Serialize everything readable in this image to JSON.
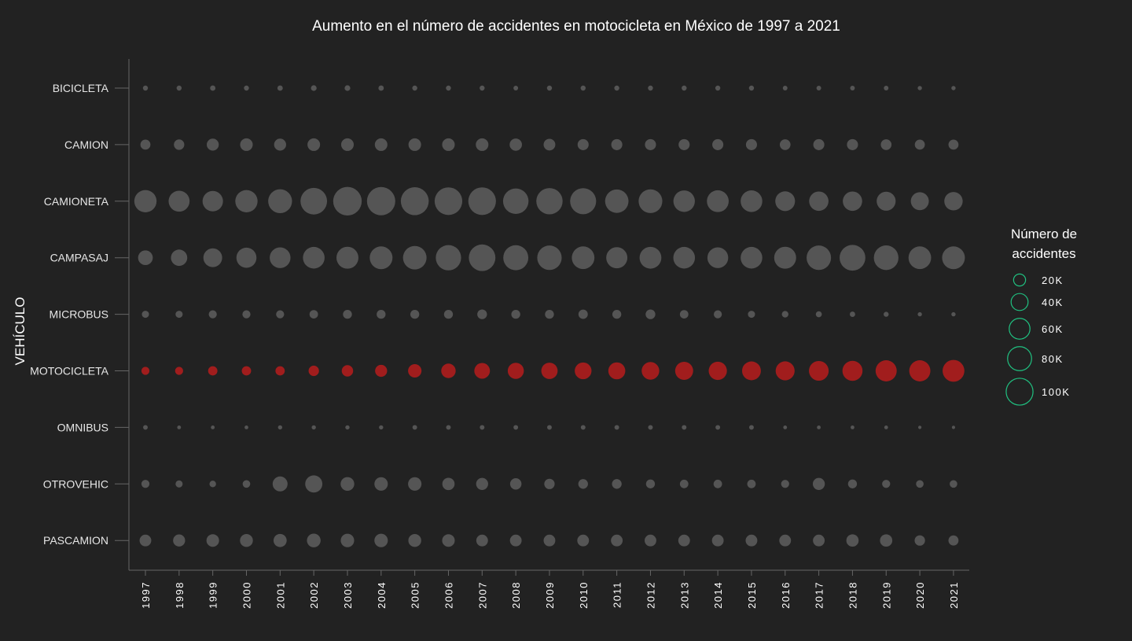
{
  "chart_data": {
    "type": "scatter",
    "title": "Aumento en el número de accidentes en motocicleta en México de 1997 a 2021",
    "xlabel": "",
    "ylabel": "VEHÍCULO",
    "x": [
      "1997",
      "1998",
      "1999",
      "2000",
      "2001",
      "2002",
      "2003",
      "2004",
      "2005",
      "2006",
      "2007",
      "2008",
      "2009",
      "2010",
      "2011",
      "2012",
      "2013",
      "2014",
      "2015",
      "2016",
      "2017",
      "2018",
      "2019",
      "2020",
      "2021"
    ],
    "categories": [
      "BICICLETA",
      "CAMION",
      "CAMIONETA",
      "CAMPASAJ",
      "MICROBUS",
      "MOTOCICLETA",
      "OMNIBUS",
      "OTROVEHIC",
      "PASCAMION"
    ],
    "highlight": "MOTOCICLETA",
    "series": [
      {
        "name": "BICICLETA",
        "values": [
          3500,
          3500,
          4000,
          3500,
          4000,
          4500,
          4500,
          4000,
          3500,
          3500,
          3500,
          3000,
          3500,
          3500,
          3500,
          3500,
          3500,
          3500,
          3500,
          3000,
          3000,
          3000,
          3000,
          2500,
          2500
        ]
      },
      {
        "name": "CAMION",
        "values": [
          14000,
          15000,
          20000,
          22000,
          20000,
          22000,
          22000,
          22000,
          22000,
          22000,
          22000,
          21000,
          19000,
          17000,
          17000,
          17000,
          17000,
          17000,
          17000,
          16000,
          17000,
          17000,
          16000,
          14000,
          14000
        ]
      },
      {
        "name": "CAMIONETA",
        "values": [
          69000,
          61000,
          58000,
          69000,
          79000,
          98000,
          113000,
          111000,
          108000,
          106000,
          106000,
          90000,
          96000,
          94000,
          76000,
          78000,
          64000,
          66000,
          65000,
          54000,
          52000,
          52000,
          50000,
          45000,
          47000
        ]
      },
      {
        "name": "CAMPASAJ",
        "values": [
          30000,
          37000,
          49000,
          56000,
          60000,
          65000,
          67000,
          72000,
          77000,
          89000,
          98000,
          87000,
          83000,
          71000,
          62000,
          66000,
          65000,
          60000,
          65000,
          67000,
          83000,
          92000,
          84000,
          71000,
          72000
        ]
      },
      {
        "name": "MICROBUS",
        "values": [
          7000,
          7000,
          9000,
          9000,
          9000,
          10000,
          11000,
          11000,
          11000,
          11000,
          13000,
          11000,
          11000,
          12000,
          11000,
          13000,
          10000,
          9000,
          7000,
          6000,
          5000,
          4000,
          3500,
          2500,
          2500
        ]
      },
      {
        "name": "MOTOCICLETA",
        "values": [
          9000,
          9000,
          12000,
          12000,
          12000,
          15000,
          18000,
          20000,
          25000,
          29000,
          34000,
          36000,
          37000,
          39000,
          40000,
          43000,
          45000,
          46000,
          49000,
          50000,
          54000,
          56000,
          62000,
          62000,
          66000
        ]
      },
      {
        "name": "OMNIBUS",
        "values": [
          3000,
          2000,
          2000,
          2000,
          2500,
          2500,
          2500,
          2500,
          3000,
          3000,
          3000,
          3000,
          3000,
          3000,
          3000,
          3000,
          3000,
          3000,
          3000,
          2000,
          2000,
          2000,
          2000,
          1500,
          1500
        ]
      },
      {
        "name": "OTROVEHIC",
        "values": [
          9000,
          7000,
          6000,
          8000,
          31000,
          41000,
          26000,
          25000,
          25000,
          21000,
          20000,
          18000,
          15000,
          13000,
          13000,
          11000,
          10000,
          10000,
          10000,
          9000,
          20000,
          11000,
          9000,
          8000,
          8000
        ]
      },
      {
        "name": "PASCAMION",
        "values": [
          19000,
          20000,
          22000,
          23000,
          24000,
          26000,
          25000,
          25000,
          23000,
          22000,
          19000,
          19000,
          19000,
          19000,
          19000,
          19000,
          19000,
          19000,
          19000,
          19000,
          19000,
          21000,
          21000,
          15000,
          14000
        ]
      }
    ],
    "size_legend": {
      "title_lines": [
        "Número de",
        "accidentes"
      ],
      "values": [
        20000,
        40000,
        60000,
        80000,
        100000
      ],
      "labels": [
        "20K",
        "40K",
        "60K",
        "80K",
        "100K"
      ]
    },
    "colors": {
      "background": "#222222",
      "dot": "#555555",
      "highlight": "#a11d1d",
      "legend": "#20c080",
      "axis": "#666666"
    },
    "grid": false,
    "legend_position": "right"
  }
}
